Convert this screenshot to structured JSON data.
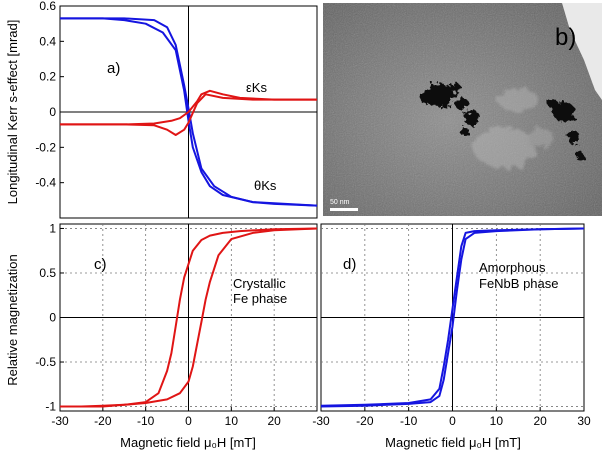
{
  "figure": {
    "ylabel_top": "Longitudinal Kerr s-effect [mrad]",
    "ylabel_bottom": "Relative magnetization",
    "xlabel": "Magnetic field μ₀H [mT]"
  },
  "chart_data": [
    {
      "panel": "a)",
      "type": "line",
      "xlim": [
        -30,
        30
      ],
      "ylim": [
        -0.6,
        0.6
      ],
      "yticks": [
        "0.6",
        "0.4",
        "0.2",
        "0",
        "-0.2",
        "-0.4"
      ],
      "grid": false,
      "annotations": [
        "εKs",
        "θKs"
      ],
      "series": [
        {
          "name": "θKs",
          "color": "#1515e0",
          "branch_down": {
            "x": [
              -30,
              -15,
              -8,
              -5,
              -3,
              -1,
              0,
              1,
              3,
              6,
              10,
              15,
              20,
              30
            ],
            "y": [
              0.53,
              0.53,
              0.52,
              0.48,
              0.38,
              0.15,
              0.02,
              -0.12,
              -0.32,
              -0.42,
              -0.48,
              -0.51,
              -0.52,
              -0.53
            ]
          },
          "branch_up": {
            "x": [
              -30,
              -20,
              -15,
              -10,
              -6,
              -3,
              -1,
              0,
              1,
              3,
              5,
              8,
              15,
              30
            ],
            "y": [
              0.53,
              0.53,
              0.52,
              0.5,
              0.45,
              0.35,
              0.12,
              -0.05,
              -0.2,
              -0.34,
              -0.42,
              -0.47,
              -0.51,
              -0.53
            ]
          }
        },
        {
          "name": "εKs",
          "color": "#e01515",
          "branch_down": {
            "x": [
              -30,
              -15,
              -8,
              -4,
              -2,
              0,
              2,
              3,
              5,
              8,
              12,
              20,
              30
            ],
            "y": [
              -0.07,
              -0.07,
              -0.065,
              -0.05,
              -0.035,
              0.0,
              0.06,
              0.1,
              0.12,
              0.1,
              0.08,
              0.07,
              0.07
            ]
          },
          "branch_up": {
            "x": [
              -30,
              -15,
              -8,
              -5,
              -3,
              -1,
              0,
              2,
              4,
              8,
              15,
              30
            ],
            "y": [
              -0.07,
              -0.07,
              -0.075,
              -0.1,
              -0.13,
              -0.1,
              -0.06,
              0.05,
              0.1,
              0.08,
              0.07,
              0.07
            ]
          }
        }
      ]
    },
    {
      "panel": "c)",
      "type": "line",
      "xlim": [
        -30,
        30
      ],
      "ylim": [
        -1.05,
        1.05
      ],
      "xticks": [
        "-30",
        "-20",
        "-10",
        "0",
        "10",
        "20"
      ],
      "yticks": [
        "1",
        "0.5",
        "0",
        "-0.5",
        "-1"
      ],
      "grid": true,
      "annotations": [
        "Crystallic",
        "Fe phase"
      ],
      "series": [
        {
          "name": "",
          "color": "#e01515",
          "branch_down": {
            "x": [
              -30,
              -25,
              -20,
              -15,
              -10,
              -7,
              -5,
              -4,
              -3,
              -2,
              -1,
              0,
              1,
              3,
              5,
              8,
              12,
              20,
              30
            ],
            "y": [
              -1.0,
              -1.0,
              -0.99,
              -0.98,
              -0.95,
              -0.85,
              -0.6,
              -0.4,
              -0.1,
              0.2,
              0.45,
              0.6,
              0.75,
              0.87,
              0.92,
              0.95,
              0.97,
              0.99,
              1.0
            ]
          },
          "branch_up": {
            "x": [
              -30,
              -20,
              -15,
              -10,
              -5,
              -2,
              0,
              1,
              2,
              3,
              4,
              5,
              7,
              10,
              15,
              20,
              30
            ],
            "y": [
              -1.0,
              -1.0,
              -0.98,
              -0.96,
              -0.92,
              -0.85,
              -0.72,
              -0.55,
              -0.3,
              -0.05,
              0.2,
              0.4,
              0.7,
              0.88,
              0.95,
              0.98,
              1.0
            ]
          }
        }
      ]
    },
    {
      "panel": "d)",
      "type": "line",
      "xlim": [
        -30,
        30
      ],
      "ylim": [
        -1.05,
        1.05
      ],
      "xticks": [
        "-30",
        "-20",
        "-10",
        "0",
        "10",
        "20",
        "30"
      ],
      "grid": true,
      "annotations": [
        "Amorphous",
        "FeNbB phase"
      ],
      "series": [
        {
          "name": "",
          "color": "#1515e0",
          "branch_down": {
            "x": [
              -30,
              -20,
              -10,
              -5,
              -3,
              -2,
              -1,
              0,
              1,
              2,
              3,
              5,
              10,
              20,
              30
            ],
            "y": [
              -0.99,
              -0.98,
              -0.96,
              -0.92,
              -0.8,
              -0.55,
              -0.25,
              0.1,
              0.45,
              0.8,
              0.95,
              0.97,
              0.98,
              0.99,
              1.0
            ]
          },
          "branch_up": {
            "x": [
              -30,
              -20,
              -10,
              -5,
              -3,
              -2,
              -1,
              0,
              1,
              2,
              3,
              5,
              10,
              20,
              30
            ],
            "y": [
              -1.0,
              -0.99,
              -0.97,
              -0.95,
              -0.88,
              -0.7,
              -0.4,
              -0.1,
              0.3,
              0.65,
              0.88,
              0.95,
              0.97,
              0.99,
              1.0
            ]
          }
        }
      ]
    }
  ],
  "tem_image": {
    "panel": "b)",
    "scalebar_label": "50 nm"
  }
}
